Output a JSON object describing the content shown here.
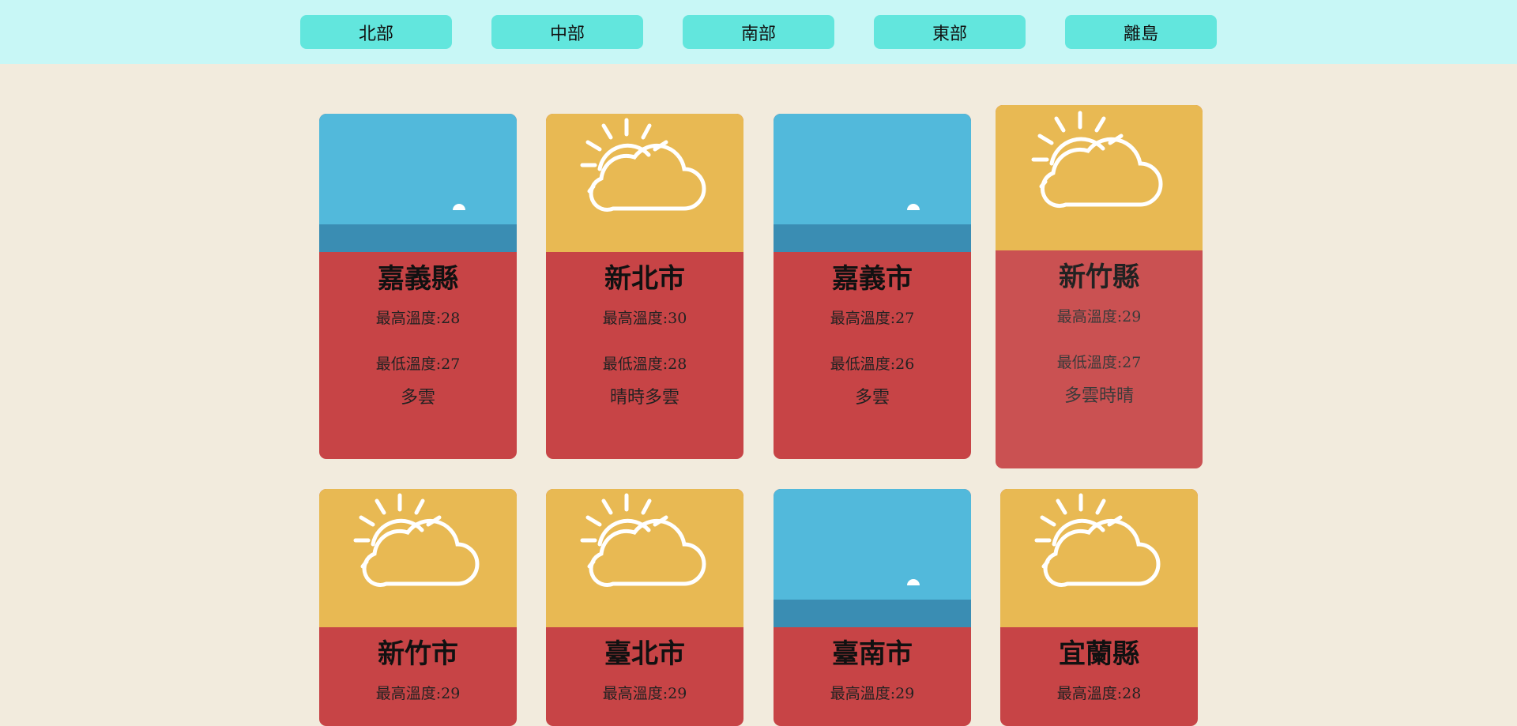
{
  "nav": {
    "regions": [
      "北部",
      "中部",
      "南部",
      "東部",
      "離島"
    ]
  },
  "colors": {
    "header_bg": "#c8f7f6",
    "button_bg": "#62e6dd",
    "page_bg": "#f2ebdd",
    "card_red": "#c74446",
    "sky_blue": "#52b9db",
    "sea_blue": "#3a8db3",
    "sunny_yellow": "#e8b953"
  },
  "cards": [
    {
      "city": "嘉義縣",
      "max_temp": "最高溫度:28",
      "min_temp": "最低溫度:27",
      "weather": "多雲",
      "icon": "moon-over-sea-icon"
    },
    {
      "city": "新北市",
      "max_temp": "最高溫度:30",
      "min_temp": "最低溫度:28",
      "weather": "晴時多雲",
      "icon": "sun-cloud-icon"
    },
    {
      "city": "嘉義市",
      "max_temp": "最高溫度:27",
      "min_temp": "最低溫度:26",
      "weather": "多雲",
      "icon": "moon-over-sea-icon"
    },
    {
      "city": "新竹縣",
      "max_temp": "最高溫度:29",
      "min_temp": "最低溫度:27",
      "weather": "多雲時晴",
      "icon": "sun-cloud-icon"
    },
    {
      "city": "新竹市",
      "max_temp": "最高溫度:29",
      "icon": "sun-cloud-icon"
    },
    {
      "city": "臺北市",
      "max_temp": "最高溫度:29",
      "icon": "sun-cloud-icon"
    },
    {
      "city": "臺南市",
      "max_temp": "最高溫度:29",
      "icon": "moon-over-sea-icon"
    },
    {
      "city": "宜蘭縣",
      "max_temp": "最高溫度:28",
      "icon": "sun-cloud-icon"
    }
  ]
}
